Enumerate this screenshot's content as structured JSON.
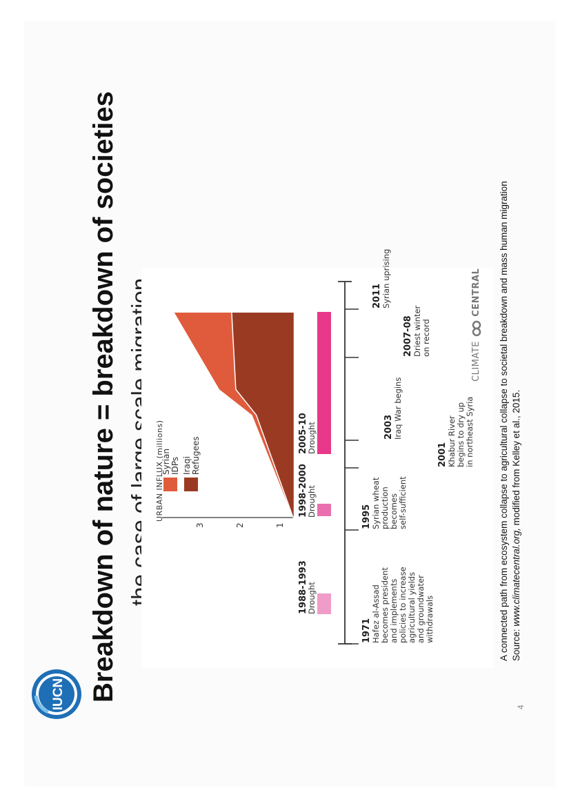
{
  "slide": {
    "title": "Breakdown of nature = breakdown of societies",
    "subtitle": "the case of large scale migration",
    "logo_text": "IUCN",
    "page_number": "4"
  },
  "caption": {
    "line1": "A connected path from ecosystem collapse to agricultural collapse to societal breakdown and mass human migration",
    "line2_prefix": "Source: ",
    "line2_link": "www.climatecentral.org,",
    "line2_suffix": " modified from Kelley et al., 2015."
  },
  "figure": {
    "credit_left": "CLIMATE",
    "credit_right": "CENTRAL",
    "chart_data": {
      "type": "area",
      "ylabel": "URBAN INFLUX (millions)",
      "yticks": [
        "1",
        "2",
        "3"
      ],
      "ylim": [
        0,
        3.2
      ],
      "x_range": [
        2003,
        2011
      ],
      "series": [
        {
          "name": "Iraqi Refugees",
          "x": [
            2003,
            2007,
            2008,
            2011
          ],
          "values": [
            0,
            0.9,
            1.4,
            1.5
          ]
        },
        {
          "name": "Syrian IDPs",
          "x": [
            2003,
            2007,
            2008,
            2011
          ],
          "values": [
            0,
            0.1,
            0.4,
            1.4
          ]
        }
      ],
      "legend": [
        {
          "label_line1": "Syrian",
          "label_line2": "IDPs",
          "color": "#e05b3c"
        },
        {
          "label_line1": "Iraqi",
          "label_line2": "Refugees",
          "color": "#9b3a23"
        }
      ],
      "legend_placement": "top-right"
    },
    "droughts": [
      {
        "period": "1988-1993",
        "label": "Drought",
        "color": "#f09cc8"
      },
      {
        "period": "1998-2000",
        "label": "Drought",
        "color": "#ea6fae"
      },
      {
        "period": "2005-10",
        "label": "Drought",
        "color": "#e8388a"
      }
    ],
    "events": [
      {
        "year": "1971",
        "lines": [
          "Hafez al-Assad",
          "becomes president",
          "and implements",
          "policies to increase",
          "agricultural yields",
          "and groundwater",
          "withdrawals"
        ]
      },
      {
        "year": "1995",
        "lines": [
          "Syrian wheat",
          "production",
          "becomes",
          "self-sufficient"
        ]
      },
      {
        "year": "2001",
        "lines": [
          "Khabur River",
          "begins to dry up",
          "in northeast Syria"
        ]
      },
      {
        "year": "2003",
        "lines": [
          "Iraq War begins"
        ]
      },
      {
        "year": "2007-08",
        "lines": [
          "Driest winter",
          "on record"
        ]
      },
      {
        "year": "2011",
        "lines": [
          "Syrian uprising"
        ]
      }
    ],
    "colors": {
      "timeline": "#333333",
      "syrian_idps": "#e05b3c",
      "iraqi_refugees": "#9b3a23"
    }
  }
}
